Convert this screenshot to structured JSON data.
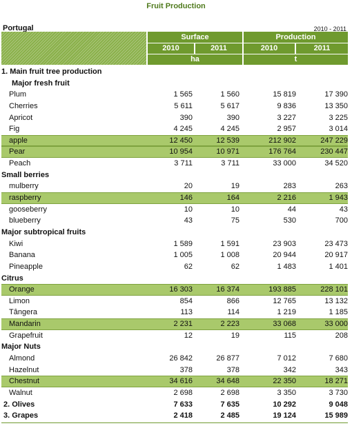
{
  "title": "Fruit Production",
  "country": "Portugal",
  "year_range": "2010 - 2011",
  "header": {
    "surface": "Surface",
    "production": "Production",
    "years": [
      "2010",
      "2011",
      "2010",
      "2011"
    ],
    "unit_surface": "ha",
    "unit_production": "t"
  },
  "rows": [
    {
      "label": "1. Main fruit tree production",
      "kind": "section",
      "values": []
    },
    {
      "label": "Major fresh fruit",
      "kind": "sub",
      "values": []
    },
    {
      "label": "Plum",
      "kind": "item",
      "values": [
        "1 565",
        "1 560",
        "15 819",
        "17 390"
      ]
    },
    {
      "label": "Cherries",
      "kind": "item",
      "values": [
        "5 611",
        "5 617",
        "9 836",
        "13 350"
      ]
    },
    {
      "label": "Apricot",
      "kind": "item",
      "values": [
        "390",
        "390",
        "3 227",
        "3 225"
      ]
    },
    {
      "label": "Fig",
      "kind": "item",
      "values": [
        "4 245",
        "4 245",
        "2 957",
        "3 014"
      ]
    },
    {
      "label": "apple",
      "kind": "item",
      "highlight": true,
      "values": [
        "12 450",
        "12 539",
        "212 902",
        "247 229"
      ]
    },
    {
      "label": "Pear",
      "kind": "item",
      "highlight": true,
      "values": [
        "10 954",
        "10 971",
        "176 764",
        "230 447"
      ]
    },
    {
      "label": "Peach",
      "kind": "item",
      "values": [
        "3 711",
        "3 711",
        "33 000",
        "34 520"
      ]
    },
    {
      "label": "Small berries",
      "kind": "section",
      "values": []
    },
    {
      "label": "mulberry",
      "kind": "item",
      "values": [
        "20",
        "19",
        "283",
        "263"
      ]
    },
    {
      "label": "raspberry",
      "kind": "item",
      "highlight": true,
      "values": [
        "146",
        "164",
        "2 216",
        "1 943"
      ]
    },
    {
      "label": "gooseberry",
      "kind": "item",
      "values": [
        "10",
        "10",
        "44",
        "43"
      ]
    },
    {
      "label": "blueberry",
      "kind": "item",
      "values": [
        "43",
        "75",
        "530",
        "700"
      ]
    },
    {
      "label": "Major subtropical fruits",
      "kind": "section",
      "values": []
    },
    {
      "label": "Kiwi",
      "kind": "item",
      "values": [
        "1 589",
        "1 591",
        "23 903",
        "23 473"
      ]
    },
    {
      "label": "Banana",
      "kind": "item",
      "values": [
        "1 005",
        "1 008",
        "20 944",
        "20 917"
      ]
    },
    {
      "label": "Pineapple",
      "kind": "item",
      "values": [
        "62",
        "62",
        "1 483",
        "1 401"
      ]
    },
    {
      "label": "Citrus",
      "kind": "section",
      "values": []
    },
    {
      "label": "Orange",
      "kind": "item",
      "highlight": true,
      "values": [
        "16 303",
        "16 374",
        "193 885",
        "228 101"
      ]
    },
    {
      "label": "Limon",
      "kind": "item",
      "values": [
        "854",
        "866",
        "12 765",
        "13 132"
      ]
    },
    {
      "label": "Tângera",
      "kind": "item",
      "values": [
        "113",
        "114",
        "1 219",
        "1 185"
      ]
    },
    {
      "label": "Mandarin",
      "kind": "item",
      "highlight": true,
      "values": [
        "2 231",
        "2 223",
        "33 068",
        "33 000"
      ]
    },
    {
      "label": "Grapefruit",
      "kind": "item",
      "values": [
        "12",
        "19",
        "115",
        "208"
      ]
    },
    {
      "label": "Major Nuts",
      "kind": "section",
      "values": []
    },
    {
      "label": "Almond",
      "kind": "item",
      "values": [
        "26 842",
        "26 877",
        "7 012",
        "7 680"
      ]
    },
    {
      "label": "Hazelnut",
      "kind": "item",
      "values": [
        "378",
        "378",
        "342",
        "343"
      ]
    },
    {
      "label": "Chestnut",
      "kind": "item",
      "highlight": true,
      "values": [
        "34 616",
        "34 648",
        "22 350",
        "18 271"
      ]
    },
    {
      "label": "Walnut",
      "kind": "item",
      "values": [
        "2 698",
        "2 698",
        "3 350",
        "3 730"
      ]
    },
    {
      "label": "2. Olives",
      "kind": "total",
      "values": [
        "7 633",
        "7 635",
        "10 292",
        "9 048"
      ]
    },
    {
      "label": "3. Grapes",
      "kind": "total",
      "values": [
        "2 418",
        "2 485",
        "19 124",
        "15 989"
      ]
    }
  ]
}
